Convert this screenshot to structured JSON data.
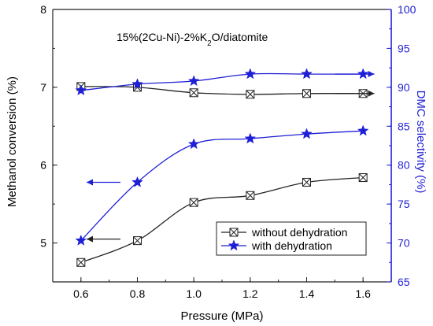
{
  "chart_data": {
    "type": "line",
    "annotation": "15%(2Cu-Ni)-2%K2O/diatomite",
    "annotation_parts": {
      "prefix": "15%(2Cu-Ni)-2%K",
      "sub": "2",
      "suffix": "O/diatomite"
    },
    "xlabel": "Pressure (MPa)",
    "ylabel_left": "Methanol conversion (%)",
    "ylabel_right": "DMC selectivity (%)",
    "xlim": [
      0.5,
      1.7
    ],
    "ylim_left": [
      4.5,
      8
    ],
    "ylim_right": [
      65,
      100
    ],
    "x_ticks": [
      "0.6",
      "0.8",
      "1.0",
      "1.2",
      "1.4",
      "1.6"
    ],
    "x_tick_values": [
      0.6,
      0.8,
      1.0,
      1.2,
      1.4,
      1.6
    ],
    "y_left_ticks": [
      "5",
      "6",
      "7",
      "8"
    ],
    "y_left_tick_values": [
      5,
      6,
      7,
      8
    ],
    "y_right_ticks": [
      "65",
      "70",
      "75",
      "80",
      "85",
      "90",
      "95",
      "100"
    ],
    "y_right_tick_values": [
      65,
      70,
      75,
      80,
      85,
      90,
      95,
      100
    ],
    "x": [
      0.6,
      0.8,
      1.0,
      1.2,
      1.4,
      1.6
    ],
    "series": [
      {
        "name": "without dehydration",
        "marker": "x-box",
        "color": "#222222",
        "group": "conversion",
        "axis": "left",
        "values": [
          4.75,
          5.03,
          5.52,
          5.61,
          5.78,
          5.84
        ]
      },
      {
        "name": "with dehydration",
        "marker": "star",
        "color": "#1f1fd6",
        "group": "conversion",
        "axis": "left",
        "values": [
          5.03,
          5.78,
          6.27,
          6.34,
          6.4,
          6.44
        ]
      },
      {
        "name": "without dehydration",
        "marker": "x-box",
        "color": "#222222",
        "group": "selectivity",
        "axis": "right",
        "values": [
          90.1,
          90.0,
          89.3,
          89.1,
          89.2,
          89.2
        ]
      },
      {
        "name": "with dehydration",
        "marker": "star",
        "color": "#1f1fd6",
        "group": "selectivity",
        "axis": "right",
        "values": [
          89.6,
          90.4,
          90.8,
          91.7,
          91.7,
          91.7
        ]
      }
    ],
    "legend": [
      {
        "label": "without dehydration",
        "marker": "x-box",
        "color": "#222222"
      },
      {
        "label": "with dehydration",
        "marker": "star",
        "color": "#1f1fd6"
      }
    ],
    "legend_position": "lower-right",
    "arrows": [
      {
        "x_from": 0.74,
        "x_to": 0.62,
        "y": 5.05,
        "axis": "left",
        "color": "#222222",
        "points": "left"
      },
      {
        "x_from": 0.74,
        "x_to": 0.62,
        "y": 5.78,
        "axis": "left",
        "color": "#1f1fd6",
        "points": "left"
      },
      {
        "x_from": 1.5,
        "x_to": 1.64,
        "y": 89.2,
        "axis": "right",
        "color": "#222222",
        "points": "right"
      },
      {
        "x_from": 1.5,
        "x_to": 1.64,
        "y": 91.7,
        "axis": "right",
        "color": "#1f1fd6",
        "points": "right"
      }
    ],
    "colors": {
      "left_axis": "#222222",
      "right_axis": "#1f1fd6"
    },
    "grid": false
  }
}
